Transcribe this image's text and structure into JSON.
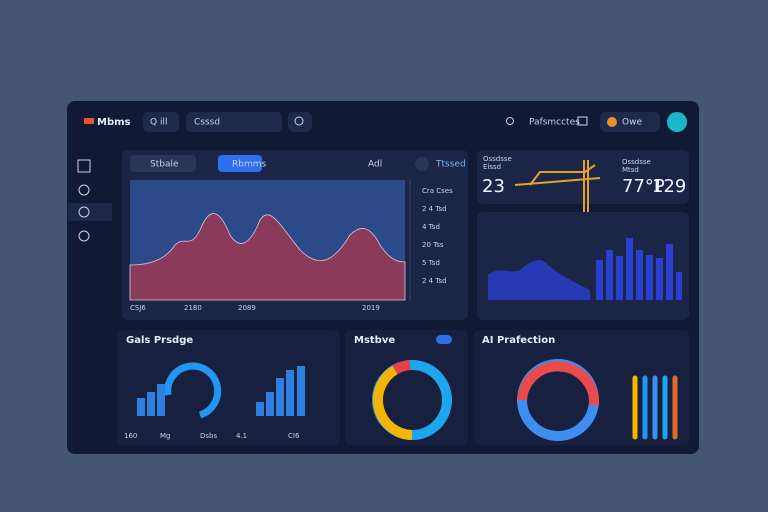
{
  "topbar": {
    "logo": "Mbms",
    "search_tab": "Q ill",
    "search_placeholder": "Csssd",
    "profile_link": "Pafsmcctes",
    "user": "Owe"
  },
  "main_chart": {
    "tab_1": "Stbale",
    "tab_2": "Rbmms",
    "filter": "Adl",
    "badge": "Ttssed",
    "side_labels": [
      "Cra Cses",
      "2 4 Tsd",
      "4 Tsd",
      "20 Tss",
      "5 Tsd",
      "2 4 Tsd"
    ],
    "x_labels": [
      "CSJ6",
      "2180",
      "2089",
      "2019"
    ]
  },
  "stats": {
    "left_title": "Ossdsse",
    "left_sub": "Eissd",
    "left_value": "23",
    "right_title": "Ossdsse",
    "right_sub": "Mtsd",
    "right_value_1": "77°P",
    "right_value_2": "129"
  },
  "cards": [
    {
      "title": "Gals Prsdge",
      "labels": [
        "160",
        "Mg",
        "Dsbs",
        "4.1",
        "CI6"
      ]
    },
    {
      "title": "Mstbve"
    },
    {
      "title": "AI Prafection"
    }
  ]
}
